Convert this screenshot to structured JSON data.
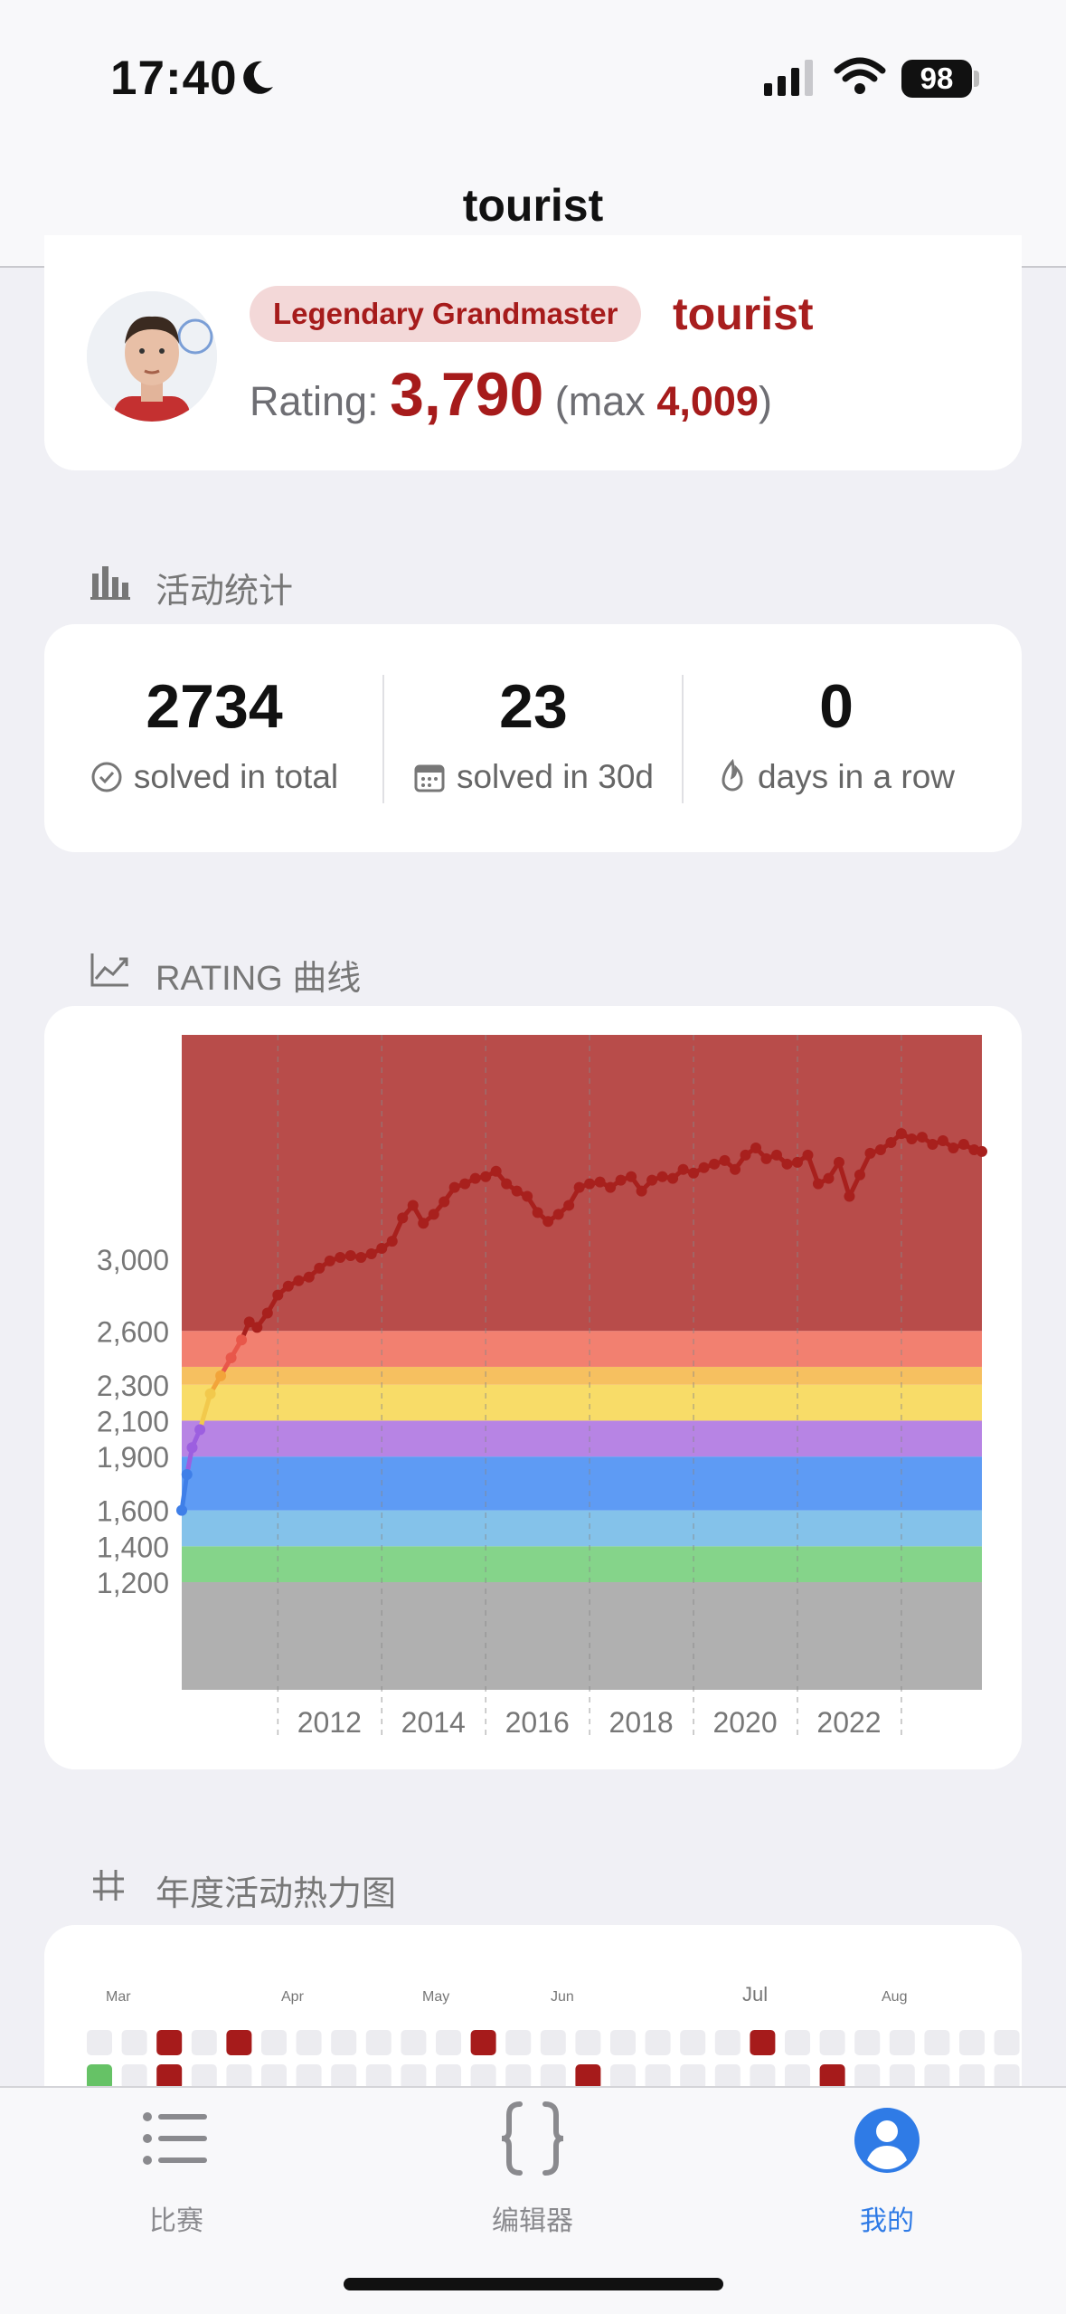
{
  "status_bar": {
    "time": "17:40",
    "battery": "98"
  },
  "nav": {
    "title": "tourist"
  },
  "profile": {
    "rank": "Legendary Grandmaster",
    "handle": "tourist",
    "rating_label": "Rating:",
    "rating": "3,790",
    "max_prefix": "(max",
    "max_value": "4,009",
    "max_suffix": ")"
  },
  "activity": {
    "title": "活动统计",
    "stats": [
      {
        "value": "2734",
        "label": "solved in total",
        "icon": "check-circle-icon"
      },
      {
        "value": "23",
        "label": "solved in 30d",
        "icon": "calendar-icon"
      },
      {
        "value": "0",
        "label": "days in a row",
        "icon": "flame-icon"
      }
    ]
  },
  "rating_chart": {
    "title": "RATING 曲线"
  },
  "chart_data": {
    "type": "line",
    "title": "",
    "xlabel": "",
    "ylabel": "",
    "xlim": [
      2010.15,
      2025.55
    ],
    "ylim": [
      600,
      4250
    ],
    "ytick_labels": [
      "1,200",
      "1,400",
      "1,600",
      "1,900",
      "2,100",
      "2,300",
      "2,600",
      "3,000"
    ],
    "yticks": [
      1200,
      1400,
      1600,
      1900,
      2100,
      2300,
      2600,
      3000
    ],
    "xtick_labels": [
      "2012",
      "2014",
      "2016",
      "2018",
      "2020",
      "2022"
    ],
    "xticks": [
      2012,
      2014,
      2016,
      2018,
      2020,
      2022
    ],
    "bands": [
      {
        "from": 600,
        "to": 1200,
        "color": "#b0b0b0"
      },
      {
        "from": 1200,
        "to": 1400,
        "color": "#85d48a"
      },
      {
        "from": 1400,
        "to": 1600,
        "color": "#84c2ea"
      },
      {
        "from": 1600,
        "to": 1900,
        "color": "#5e9bf4"
      },
      {
        "from": 1900,
        "to": 2100,
        "color": "#b784e4"
      },
      {
        "from": 2100,
        "to": 2300,
        "color": "#f8dc68"
      },
      {
        "from": 2300,
        "to": 2400,
        "color": "#f6c060"
      },
      {
        "from": 2400,
        "to": 2600,
        "color": "#f28070"
      },
      {
        "from": 2600,
        "to": 4250,
        "color": "#b84c4a"
      }
    ],
    "series": [
      {
        "x": [
          2010.15,
          2010.25,
          2010.35,
          2010.5,
          2010.7,
          2010.9,
          2011.1,
          2011.3,
          2011.45,
          2011.6,
          2011.8,
          2012.0,
          2012.2,
          2012.4,
          2012.6,
          2012.8,
          2013.0,
          2013.2,
          2013.4,
          2013.6,
          2013.8,
          2014.0,
          2014.2,
          2014.4,
          2014.6,
          2014.8,
          2015.0,
          2015.2,
          2015.4,
          2015.6,
          2015.8,
          2016.0,
          2016.2,
          2016.4,
          2016.6,
          2016.8,
          2017.0,
          2017.2,
          2017.4,
          2017.6,
          2017.8,
          2018.0,
          2018.2,
          2018.4,
          2018.6,
          2018.8,
          2019.0,
          2019.2,
          2019.4,
          2019.6,
          2019.8,
          2020.0,
          2020.2,
          2020.4,
          2020.6,
          2020.8,
          2021.0,
          2021.2,
          2021.4,
          2021.6,
          2021.8,
          2022.0,
          2022.2,
          2022.4,
          2022.6,
          2022.8,
          2023.0,
          2023.2,
          2023.4,
          2023.6,
          2023.8,
          2024.0,
          2024.2,
          2024.4,
          2024.6,
          2024.8,
          2025.0,
          2025.2,
          2025.4,
          2025.55
        ],
        "y": [
          1600,
          1800,
          1950,
          2050,
          2250,
          2350,
          2450,
          2550,
          2650,
          2620,
          2700,
          2800,
          2850,
          2880,
          2900,
          2950,
          2990,
          3010,
          3020,
          3010,
          3030,
          3060,
          3100,
          3230,
          3300,
          3200,
          3250,
          3320,
          3400,
          3420,
          3450,
          3460,
          3490,
          3420,
          3380,
          3350,
          3260,
          3210,
          3250,
          3300,
          3400,
          3420,
          3430,
          3400,
          3440,
          3460,
          3380,
          3440,
          3460,
          3450,
          3500,
          3480,
          3510,
          3530,
          3550,
          3500,
          3580,
          3620,
          3560,
          3580,
          3530,
          3540,
          3580,
          3420,
          3450,
          3540,
          3350,
          3470,
          3590,
          3610,
          3650,
          3700,
          3670,
          3680,
          3640,
          3660,
          3620,
          3640,
          3610,
          3600
        ],
        "color": "#a8201d"
      }
    ]
  },
  "heatmap": {
    "title": "年度活动热力图",
    "months": [
      "Mar",
      "Apr",
      "May",
      "Jun",
      "Jul",
      "Aug"
    ],
    "row1": [
      0,
      0,
      2,
      0,
      2,
      0,
      0,
      0,
      0,
      0,
      0,
      2,
      0,
      0,
      0,
      0,
      0,
      0,
      0,
      2,
      0,
      0,
      0,
      0,
      0,
      0,
      0
    ],
    "row2": [
      1,
      0,
      2,
      0,
      0,
      0,
      0,
      0,
      0,
      0,
      0,
      0,
      0,
      0,
      2,
      0,
      0,
      0,
      0,
      0,
      0,
      2,
      0,
      0,
      0,
      0,
      0
    ],
    "colors": {
      "empty": "#ececf0",
      "strong": "#a61b1b",
      "green": "#66c266"
    }
  },
  "tabs": [
    {
      "label": "比赛",
      "icon": "list-icon"
    },
    {
      "label": "编辑器",
      "icon": "code-braces-icon"
    },
    {
      "label": "我的",
      "icon": "profile-icon"
    }
  ],
  "colors": {
    "accent": "#a61b1b",
    "tab_active": "#2f7be6"
  }
}
